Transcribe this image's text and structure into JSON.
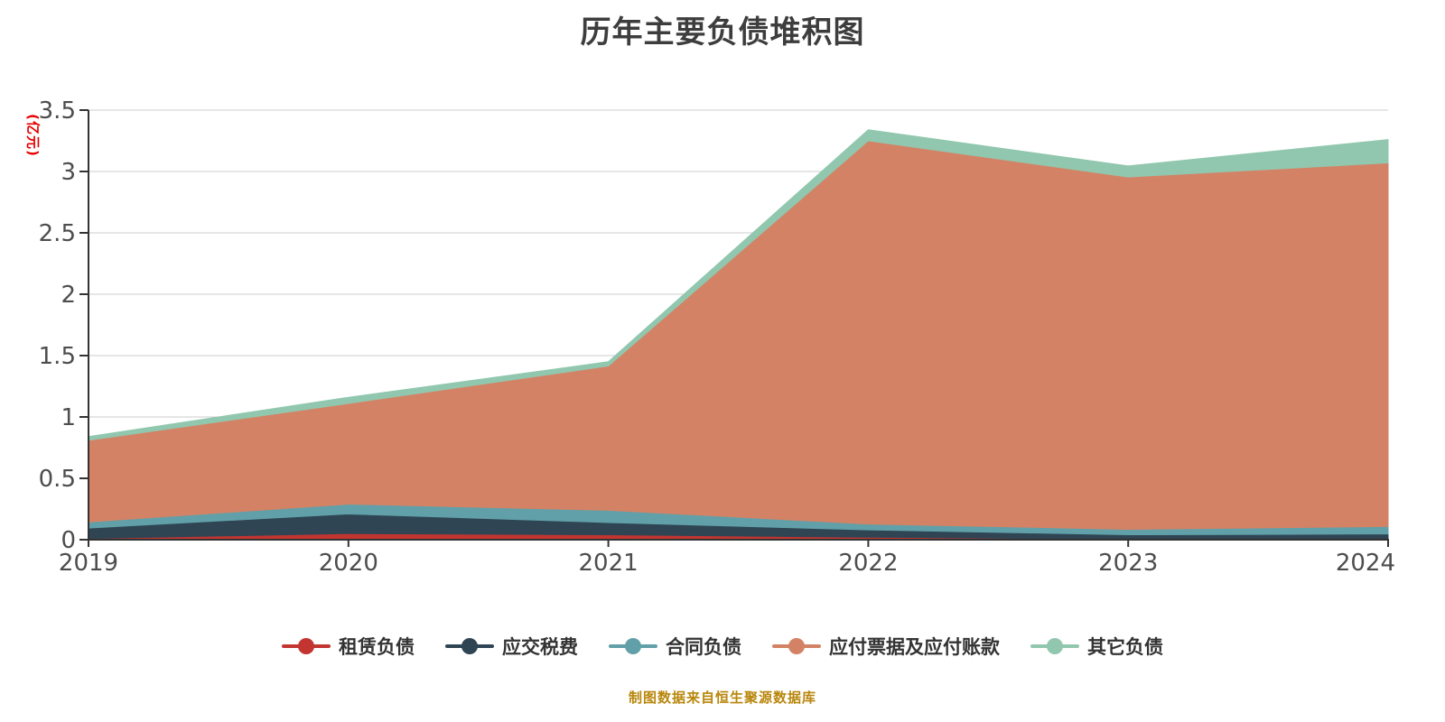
{
  "title": "历年主要负债堆积图",
  "y_axis_name": "(亿元)",
  "source_note": "制图数据来自恒生聚源数据库",
  "colors": {
    "background": "#ffffff",
    "title": "#3d3d3d",
    "axis": "#333333",
    "grid": "#cccccc",
    "tick_label": "#4d4d4d",
    "legend_text": "#333333",
    "source_note": "#b8860b",
    "y_axis_name": "#e60000"
  },
  "legend": {
    "items": [
      {
        "label": "租赁负债",
        "color": "#c23531"
      },
      {
        "label": "应交税费",
        "color": "#2f4554"
      },
      {
        "label": "合同负债",
        "color": "#61a0a8"
      },
      {
        "label": "应付票据及应付账款",
        "color": "#d48265"
      },
      {
        "label": "其它负债",
        "color": "#91c7ae"
      }
    ]
  },
  "chart_data": {
    "type": "area",
    "stacked": true,
    "title": "历年主要负债堆积图",
    "ylabel": "(亿元)",
    "xlabel": "",
    "categories": [
      "2019",
      "2020",
      "2021",
      "2022",
      "2023",
      "2024"
    ],
    "ylim": [
      0,
      3.5
    ],
    "y_interval": 0.5,
    "y_tick_labels": [
      "0",
      "0.5",
      "1",
      "1.5",
      "2",
      "2.5",
      "3",
      "3.5"
    ],
    "grid": true,
    "legend_position": "bottom",
    "series": [
      {
        "name": "租赁负债",
        "color": "#c23531",
        "values": [
          0.01,
          0.05,
          0.04,
          0.02,
          0.005,
          0.005
        ]
      },
      {
        "name": "应交税费",
        "color": "#2f4554",
        "values": [
          0.085,
          0.16,
          0.1,
          0.06,
          0.035,
          0.042
        ]
      },
      {
        "name": "合同负债",
        "color": "#61a0a8",
        "values": [
          0.05,
          0.08,
          0.1,
          0.048,
          0.045,
          0.061
        ]
      },
      {
        "name": "应付票据及应付账款",
        "color": "#d48265",
        "values": [
          0.665,
          0.82,
          1.175,
          3.122,
          2.87,
          2.962
        ]
      },
      {
        "name": "其它负债",
        "color": "#91c7ae",
        "values": [
          0.03,
          0.05,
          0.035,
          0.09,
          0.09,
          0.19
        ]
      }
    ],
    "stacked_totals": [
      0.84,
      1.16,
      1.45,
      3.34,
      3.045,
      3.26
    ]
  }
}
